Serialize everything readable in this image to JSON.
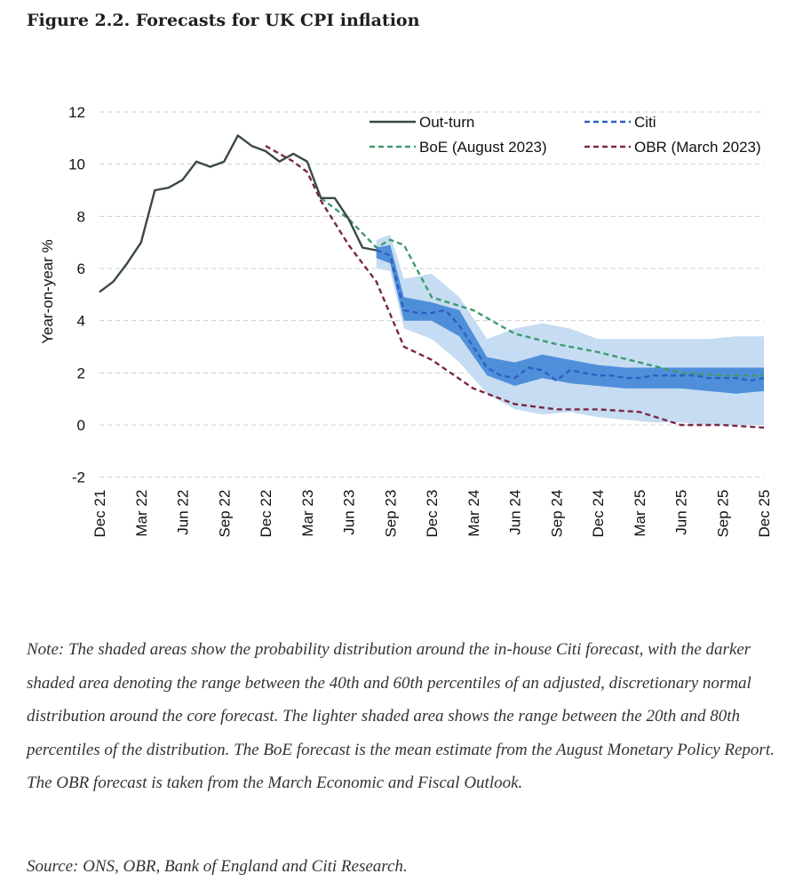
{
  "figure": {
    "title": "Figure 2.2. Forecasts for UK CPI inflation",
    "note": "Note: The shaded areas show the probability distribution around the in-house Citi forecast, with the darker shaded area denoting the range between the 40th and 60th percentiles of an adjusted, discretionary normal distribution around the core forecast. The lighter shaded area shows the range between the 20th and 80th percentiles of the distribution. The BoE forecast is the mean estimate from the August Monetary Policy Report. The OBR forecast is taken from the March Economic and Fiscal Outlook.",
    "source": "Source: ONS, OBR, Bank of England and Citi Research."
  },
  "chart_data": {
    "type": "line",
    "ylabel": "Year-on-year %",
    "ylim": [
      -2,
      12
    ],
    "yticks": [
      -2,
      0,
      2,
      4,
      6,
      8,
      10,
      12
    ],
    "grid": true,
    "legend_position": "top-right",
    "xticks": [
      "Dec 21",
      "Mar 22",
      "Jun 22",
      "Sep 22",
      "Dec 22",
      "Mar 23",
      "Jun 23",
      "Sep 23",
      "Dec 23",
      "Mar 24",
      "Jun 24",
      "Sep 24",
      "Dec 24",
      "Mar 25",
      "Jun 25",
      "Sep 25",
      "Dec 25"
    ],
    "x_axis_note": "x values are months from Dec 21 (0 = Dec 21, 48 = Dec 25)",
    "colors": {
      "outturn": "#3a4a40",
      "citi": "#2e5fbf",
      "boe": "#3f9a6e",
      "obr": "#7a2848",
      "band_light": "#c6dcf2",
      "band_dark": "#4f8fda",
      "grid": "#cfcfcf"
    },
    "series": [
      {
        "name": "Out-turn",
        "style": "solid",
        "x": [
          0,
          1,
          2,
          3,
          4,
          5,
          6,
          7,
          8,
          9,
          10,
          11,
          12,
          13,
          14,
          15,
          16,
          17,
          18,
          19,
          20
        ],
        "values": [
          5.1,
          5.5,
          6.2,
          7.0,
          9.0,
          9.1,
          9.4,
          10.1,
          9.9,
          10.1,
          11.1,
          10.7,
          10.5,
          10.1,
          10.4,
          10.1,
          8.7,
          8.7,
          7.9,
          6.8,
          6.7
        ]
      },
      {
        "name": "Citi",
        "style": "dashed",
        "x": [
          20,
          21,
          22,
          23,
          24,
          25,
          26,
          27,
          28,
          29,
          30,
          31,
          32,
          33,
          34,
          35,
          36,
          37,
          38,
          39,
          40,
          41,
          42,
          43,
          44,
          45,
          46,
          47,
          48
        ],
        "values": [
          6.7,
          6.5,
          4.4,
          4.3,
          4.3,
          4.4,
          3.8,
          3.0,
          2.2,
          1.9,
          1.8,
          2.2,
          2.1,
          1.7,
          2.1,
          2.0,
          1.9,
          1.9,
          1.8,
          1.8,
          1.9,
          1.9,
          1.9,
          1.9,
          1.8,
          1.8,
          1.8,
          1.7,
          1.8
        ]
      },
      {
        "name": "BoE (August 2023)",
        "style": "dashed",
        "x": [
          16,
          18,
          20,
          21,
          22,
          24,
          27,
          30,
          33,
          36,
          39,
          42,
          45,
          48
        ],
        "values": [
          8.7,
          7.9,
          6.8,
          7.1,
          6.9,
          4.9,
          4.4,
          3.5,
          3.1,
          2.8,
          2.4,
          2.0,
          1.9,
          1.9
        ]
      },
      {
        "name": "OBR (March 2023)",
        "style": "dashed",
        "x": [
          12,
          14,
          15,
          16,
          18,
          20,
          22,
          24,
          27,
          30,
          33,
          36,
          39,
          42,
          45,
          48
        ],
        "values": [
          10.7,
          10.1,
          9.7,
          8.6,
          6.9,
          5.5,
          3.0,
          2.5,
          1.4,
          0.8,
          0.6,
          0.6,
          0.5,
          0.0,
          0.0,
          -0.1
        ]
      }
    ],
    "bands": {
      "x": [
        20,
        21,
        22,
        24,
        26,
        28,
        30,
        32,
        34,
        36,
        38,
        40,
        42,
        44,
        46,
        48
      ],
      "p20": [
        6.0,
        5.9,
        3.7,
        3.3,
        2.4,
        1.2,
        0.6,
        0.4,
        0.5,
        0.3,
        0.2,
        0.1,
        0.1,
        0.0,
        0.0,
        0.0
      ],
      "p80": [
        7.1,
        7.3,
        5.6,
        5.8,
        4.9,
        3.3,
        3.7,
        3.9,
        3.7,
        3.3,
        3.3,
        3.3,
        3.3,
        3.3,
        3.4,
        3.4
      ],
      "p40": [
        6.4,
        6.2,
        4.0,
        4.0,
        3.4,
        1.9,
        1.5,
        1.8,
        1.6,
        1.5,
        1.4,
        1.4,
        1.4,
        1.3,
        1.2,
        1.3
      ],
      "p60": [
        6.8,
        6.9,
        4.9,
        4.7,
        4.4,
        2.6,
        2.4,
        2.7,
        2.5,
        2.3,
        2.2,
        2.2,
        2.2,
        2.2,
        2.2,
        2.2
      ]
    }
  }
}
